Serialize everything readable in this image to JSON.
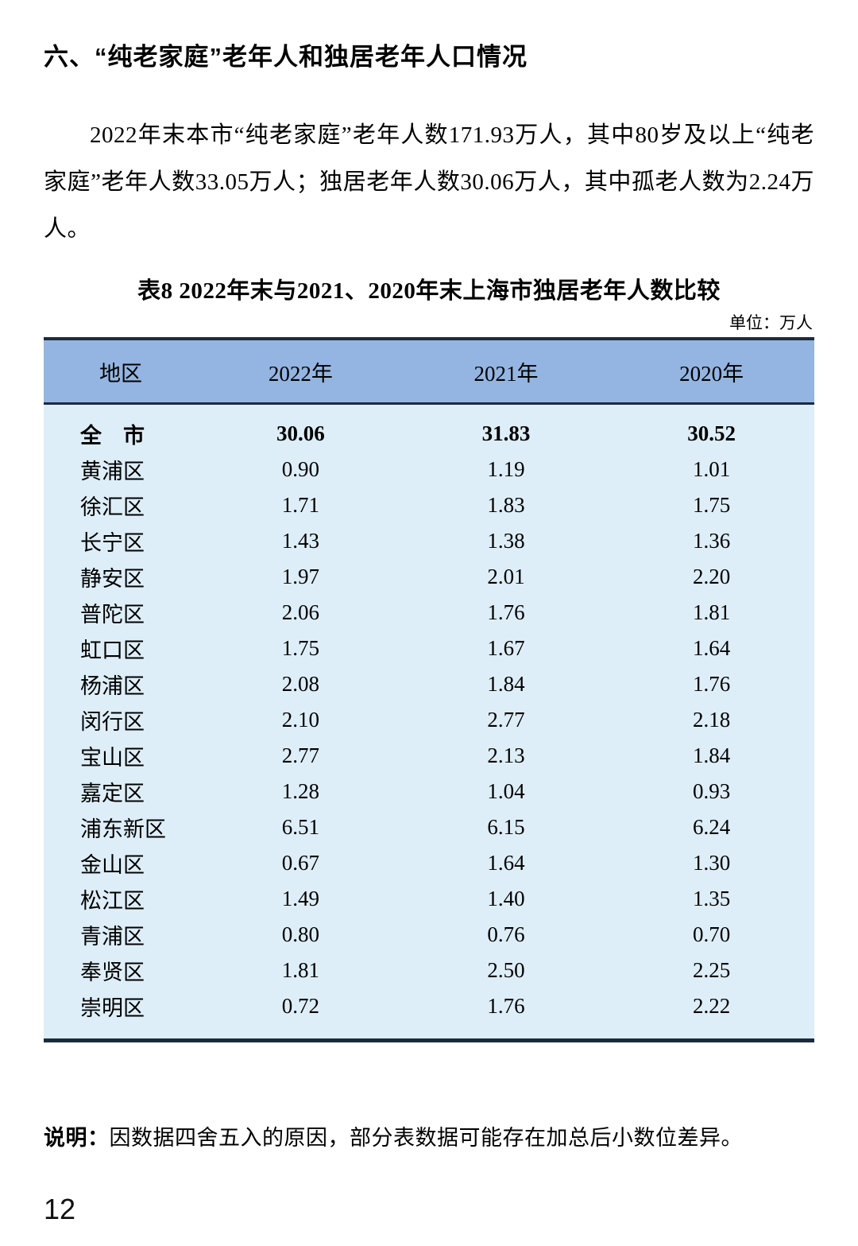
{
  "document": {
    "section_title": "六、“纯老家庭”老年人和独居老年人口情况",
    "paragraph": "2022年末本市“纯老家庭”老年人数171.93万人，其中80岁及以上“纯老家庭”老年人数33.05万人；独居老年人数30.06万人，其中孤老人数为2.24万人。",
    "note_label": "说明：",
    "note_text": "因数据四舍五入的原因，部分表数据可能存在加总后小数位差异。",
    "page_number": "12"
  },
  "table": {
    "title": "表8  2022年末与2021、2020年末上海市独居老年人数比较",
    "unit_label": "单位：万人",
    "columns": [
      "地区",
      "2022年",
      "2021年",
      "2020年"
    ],
    "rows": [
      {
        "region": "全　市",
        "values": [
          "30.06",
          "31.83",
          "30.52"
        ],
        "bold": true
      },
      {
        "region": "黄浦区",
        "values": [
          "0.90",
          "1.19",
          "1.01"
        ],
        "bold": false
      },
      {
        "region": "徐汇区",
        "values": [
          "1.71",
          "1.83",
          "1.75"
        ],
        "bold": false
      },
      {
        "region": "长宁区",
        "values": [
          "1.43",
          "1.38",
          "1.36"
        ],
        "bold": false
      },
      {
        "region": "静安区",
        "values": [
          "1.97",
          "2.01",
          "2.20"
        ],
        "bold": false
      },
      {
        "region": "普陀区",
        "values": [
          "2.06",
          "1.76",
          "1.81"
        ],
        "bold": false
      },
      {
        "region": "虹口区",
        "values": [
          "1.75",
          "1.67",
          "1.64"
        ],
        "bold": false
      },
      {
        "region": "杨浦区",
        "values": [
          "2.08",
          "1.84",
          "1.76"
        ],
        "bold": false
      },
      {
        "region": "闵行区",
        "values": [
          "2.10",
          "2.77",
          "2.18"
        ],
        "bold": false
      },
      {
        "region": "宝山区",
        "values": [
          "2.77",
          "2.13",
          "1.84"
        ],
        "bold": false
      },
      {
        "region": "嘉定区",
        "values": [
          "1.28",
          "1.04",
          "0.93"
        ],
        "bold": false
      },
      {
        "region": "浦东新区",
        "values": [
          "6.51",
          "6.15",
          "6.24"
        ],
        "bold": false
      },
      {
        "region": "金山区",
        "values": [
          "0.67",
          "1.64",
          "1.30"
        ],
        "bold": false
      },
      {
        "region": "松江区",
        "values": [
          "1.49",
          "1.40",
          "1.35"
        ],
        "bold": false
      },
      {
        "region": "青浦区",
        "values": [
          "0.80",
          "0.76",
          "0.70"
        ],
        "bold": false
      },
      {
        "region": "奉贤区",
        "values": [
          "1.81",
          "2.50",
          "2.25"
        ],
        "bold": false
      },
      {
        "region": "崇明区",
        "values": [
          "0.72",
          "1.76",
          "2.22"
        ],
        "bold": false
      }
    ]
  },
  "colors": {
    "header_bg": "#94B5E1",
    "body_bg": "#DEEEF8",
    "border_dark": "#1C2A3E"
  }
}
